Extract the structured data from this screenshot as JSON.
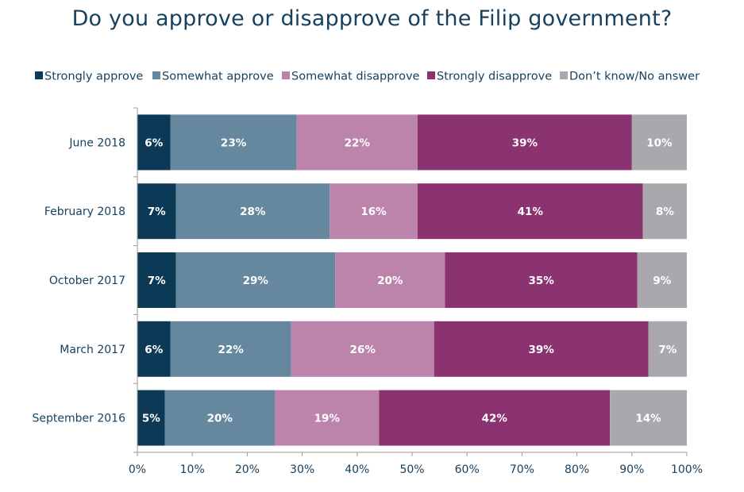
{
  "chart_data": {
    "type": "bar",
    "orientation": "horizontal",
    "stacked": true,
    "title": "Do you approve or disapprove of the Filip government?",
    "categories": [
      "June 2018",
      "February 2018",
      "October 2017",
      "March 2017",
      "September 2016"
    ],
    "series": [
      {
        "name": "Strongly approve",
        "color": "#0c3a56",
        "values": [
          6,
          7,
          7,
          6,
          5
        ]
      },
      {
        "name": "Somewhat approve",
        "color": "#66889e",
        "values": [
          23,
          28,
          29,
          22,
          20
        ]
      },
      {
        "name": "Somewhat disapprove",
        "color": "#bd84ab",
        "values": [
          22,
          16,
          20,
          26,
          19
        ]
      },
      {
        "name": "Strongly disapprove",
        "color": "#8b3270",
        "values": [
          39,
          41,
          35,
          39,
          42
        ]
      },
      {
        "name": "Don’t know/No answer",
        "color": "#a9a9ad",
        "values": [
          10,
          8,
          9,
          7,
          14
        ]
      }
    ],
    "value_labels": [
      [
        "6%",
        "7%",
        "7%",
        "6%",
        "5%"
      ],
      [
        "23%",
        "28%",
        "29%",
        "22%",
        "20%"
      ],
      [
        "22%",
        "16%",
        "20%",
        "26%",
        "19%"
      ],
      [
        "39%",
        "41%",
        "35%",
        "39%",
        "42%"
      ],
      [
        "10%",
        "8%",
        "9%",
        "7%",
        "14%"
      ]
    ],
    "xlim": [
      0,
      100
    ],
    "xticks": [
      "0%",
      "10%",
      "20%",
      "30%",
      "40%",
      "50%",
      "60%",
      "70%",
      "80%",
      "90%",
      "100%"
    ],
    "grid": false,
    "legend_position": "top"
  }
}
